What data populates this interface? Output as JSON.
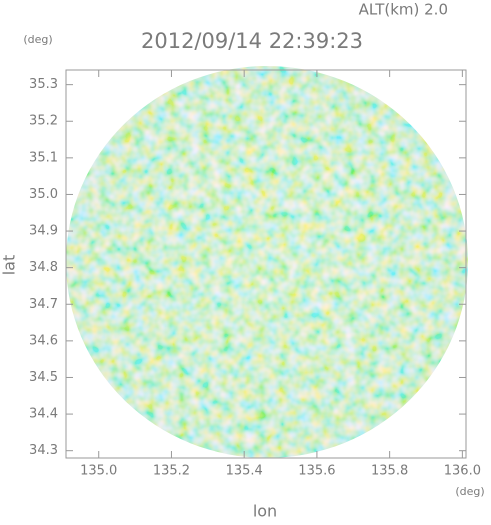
{
  "chart_data": {
    "type": "radar-map",
    "title": "2012/09/14 22:39:23",
    "subtitle": "ALT(km) 2.0",
    "x_label": "lon",
    "x_unit": "(deg)",
    "y_label": "lat",
    "y_unit": "(deg)",
    "xlim": [
      134.91,
      136.01
    ],
    "xticks": [
      {
        "value": 135.0,
        "label": "135.0"
      },
      135.2,
      135.4,
      135.6,
      135.8,
      {
        "value": 136.0,
        "label": "136.0"
      }
    ],
    "ylim": [
      34.28,
      35.34
    ],
    "yticks": [
      34.3,
      34.4,
      34.5,
      34.6,
      34.7,
      34.8,
      34.9,
      {
        "value": 35.0,
        "label": "35.0"
      },
      35.1,
      35.2,
      35.3
    ]
  }
}
